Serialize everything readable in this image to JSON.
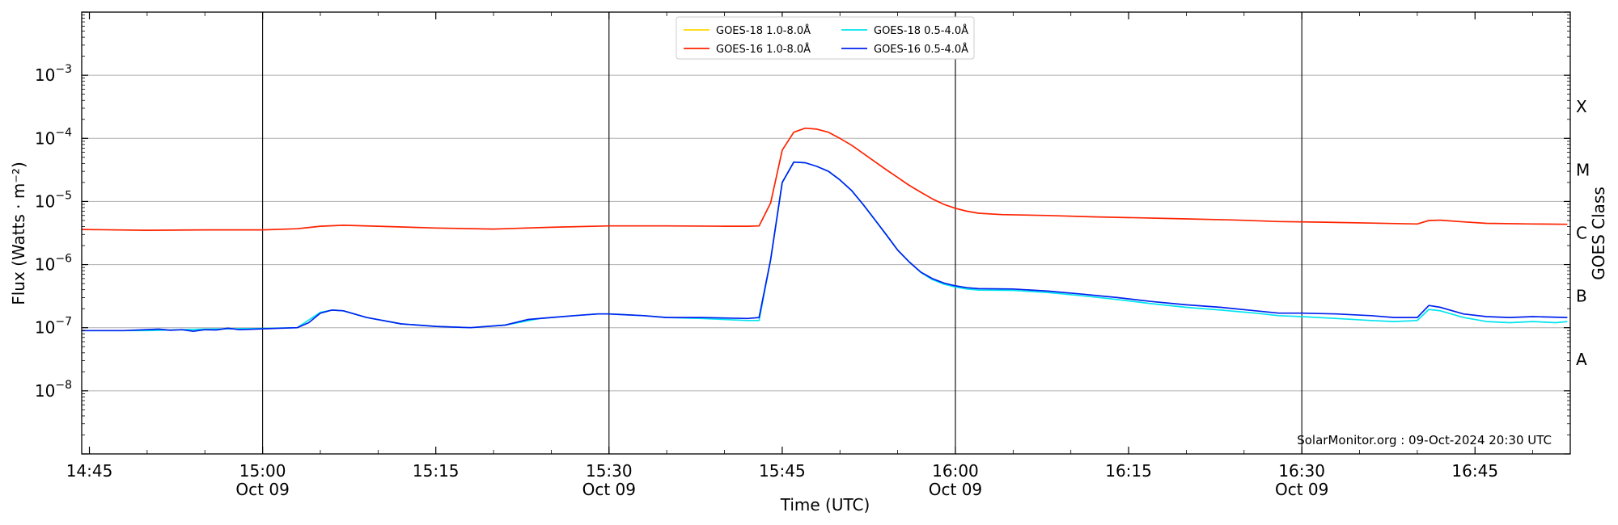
{
  "chart_data": {
    "type": "line",
    "title": "",
    "xlabel": "Time (UTC)",
    "ylabel": "Flux (Watts · m⁻²)",
    "ylabel_right": "GOES Class",
    "yscale": "log",
    "ylim": [
      1e-09,
      0.01
    ],
    "xlim": [
      "14:44:20",
      "16:53:15"
    ],
    "y_ticks": [
      {
        "value": 1e-08,
        "base": "10",
        "exp": "−8"
      },
      {
        "value": 1e-07,
        "base": "10",
        "exp": "−7"
      },
      {
        "value": 1e-06,
        "base": "10",
        "exp": "−6"
      },
      {
        "value": 1e-05,
        "base": "10",
        "exp": "−5"
      },
      {
        "value": 0.0001,
        "base": "10",
        "exp": "−4"
      },
      {
        "value": 0.001,
        "base": "10",
        "exp": "−3"
      }
    ],
    "x_ticks": [
      {
        "time": "14:45",
        "label": "14:45",
        "date": ""
      },
      {
        "time": "15:00",
        "label": "15:00",
        "date": "Oct 09"
      },
      {
        "time": "15:15",
        "label": "15:15",
        "date": ""
      },
      {
        "time": "15:30",
        "label": "15:30",
        "date": "Oct 09"
      },
      {
        "time": "15:45",
        "label": "15:45",
        "date": ""
      },
      {
        "time": "16:00",
        "label": "16:00",
        "date": "Oct 09"
      },
      {
        "time": "16:15",
        "label": "16:15",
        "date": ""
      },
      {
        "time": "16:30",
        "label": "16:30",
        "date": "Oct 09"
      },
      {
        "time": "16:45",
        "label": "16:45",
        "date": ""
      }
    ],
    "vertical_lines": [
      "15:00",
      "15:30",
      "16:00",
      "16:30"
    ],
    "goes_classes": [
      {
        "label": "A",
        "value": 3.16e-08
      },
      {
        "label": "B",
        "value": 3.16e-07
      },
      {
        "label": "C",
        "value": 3.16e-06
      },
      {
        "label": "M",
        "value": 3.16e-05
      },
      {
        "label": "X",
        "value": 0.000316
      }
    ],
    "grid": "horizontal at y decades",
    "legend_position": "top-center",
    "annotation": "SolarMonitor.org : 09-Oct-2024 20:30 UTC",
    "series": [
      {
        "name": "GOES-18 1.0-8.0Å",
        "color": "#ffd700",
        "points": []
      },
      {
        "name": "GOES-18 0.5-4.0Å",
        "color": "#00e5ee",
        "points": [
          [
            "14:44:20",
            9e-08
          ],
          [
            "14:50",
            9e-08
          ],
          [
            "14:55",
            9.5e-08
          ],
          [
            "15:00",
            9.7e-08
          ],
          [
            "15:03",
            1e-07
          ],
          [
            "15:05",
            1.75e-07
          ],
          [
            "15:06",
            1.9e-07
          ],
          [
            "15:07",
            1.85e-07
          ],
          [
            "15:09",
            1.45e-07
          ],
          [
            "15:12",
            1.15e-07
          ],
          [
            "15:15",
            1.05e-07
          ],
          [
            "15:18",
            1e-07
          ],
          [
            "15:21",
            1.1e-07
          ],
          [
            "15:24",
            1.4e-07
          ],
          [
            "15:27",
            1.55e-07
          ],
          [
            "15:29",
            1.65e-07
          ],
          [
            "15:30",
            1.65e-07
          ],
          [
            "15:33",
            1.55e-07
          ],
          [
            "15:35",
            1.45e-07
          ],
          [
            "15:38",
            1.4e-07
          ],
          [
            "15:42",
            1.3e-07
          ],
          [
            "15:43",
            1.3e-07
          ],
          [
            "15:44",
            1.2e-06
          ],
          [
            "15:45",
            2e-05
          ],
          [
            "15:46",
            4.2e-05
          ],
          [
            "15:47",
            4.1e-05
          ],
          [
            "15:48",
            3.6e-05
          ],
          [
            "15:49",
            3e-05
          ],
          [
            "15:50",
            2.2e-05
          ],
          [
            "15:51",
            1.5e-05
          ],
          [
            "15:52",
            9e-06
          ],
          [
            "15:53",
            5.2e-06
          ],
          [
            "15:54",
            3e-06
          ],
          [
            "15:55",
            1.7e-06
          ],
          [
            "15:56",
            1.1e-06
          ],
          [
            "15:57",
            7.5e-07
          ],
          [
            "15:58",
            5.8e-07
          ],
          [
            "15:59",
            4.9e-07
          ],
          [
            "16:00",
            4.4e-07
          ],
          [
            "16:01",
            4.1e-07
          ],
          [
            "16:02",
            3.95e-07
          ],
          [
            "16:05",
            3.9e-07
          ],
          [
            "16:08",
            3.6e-07
          ],
          [
            "16:11",
            3.2e-07
          ],
          [
            "16:14",
            2.8e-07
          ],
          [
            "16:17",
            2.4e-07
          ],
          [
            "16:20",
            2.1e-07
          ],
          [
            "16:23",
            1.9e-07
          ],
          [
            "16:26",
            1.7e-07
          ],
          [
            "16:28",
            1.55e-07
          ],
          [
            "16:30",
            1.5e-07
          ],
          [
            "16:33",
            1.4e-07
          ],
          [
            "16:36",
            1.3e-07
          ],
          [
            "16:38",
            1.25e-07
          ],
          [
            "16:40",
            1.3e-07
          ],
          [
            "16:41",
            1.95e-07
          ],
          [
            "16:42",
            1.85e-07
          ],
          [
            "16:44",
            1.45e-07
          ],
          [
            "16:46",
            1.25e-07
          ],
          [
            "16:48",
            1.2e-07
          ],
          [
            "16:50",
            1.25e-07
          ],
          [
            "16:52",
            1.2e-07
          ],
          [
            "16:53",
            1.25e-07
          ]
        ]
      },
      {
        "name": "GOES-16 1.0-8.0Å",
        "color": "#ff2200",
        "points": [
          [
            "14:44:20",
            3.6e-06
          ],
          [
            "14:50",
            3.5e-06
          ],
          [
            "14:55",
            3.55e-06
          ],
          [
            "15:00",
            3.55e-06
          ],
          [
            "15:03",
            3.7e-06
          ],
          [
            "15:05",
            4.05e-06
          ],
          [
            "15:07",
            4.2e-06
          ],
          [
            "15:10",
            4.05e-06
          ],
          [
            "15:15",
            3.8e-06
          ],
          [
            "15:20",
            3.65e-06
          ],
          [
            "15:25",
            3.9e-06
          ],
          [
            "15:30",
            4.1e-06
          ],
          [
            "15:35",
            4.1e-06
          ],
          [
            "15:40",
            4.05e-06
          ],
          [
            "15:42",
            4.05e-06
          ],
          [
            "15:43",
            4.1e-06
          ],
          [
            "15:44",
            9.5e-06
          ],
          [
            "15:45",
            6.5e-05
          ],
          [
            "15:46",
            0.000125
          ],
          [
            "15:47",
            0.000145
          ],
          [
            "15:48",
            0.00014
          ],
          [
            "15:49",
            0.000125
          ],
          [
            "15:50",
            0.0001
          ],
          [
            "15:51",
            7.8e-05
          ],
          [
            "15:52",
            5.8e-05
          ],
          [
            "15:53",
            4.3e-05
          ],
          [
            "15:54",
            3.2e-05
          ],
          [
            "15:55",
            2.4e-05
          ],
          [
            "15:56",
            1.8e-05
          ],
          [
            "15:57",
            1.4e-05
          ],
          [
            "15:58",
            1.1e-05
          ],
          [
            "15:59",
            9e-06
          ],
          [
            "16:00",
            7.8e-06
          ],
          [
            "16:01",
            7e-06
          ],
          [
            "16:02",
            6.5e-06
          ],
          [
            "16:04",
            6.2e-06
          ],
          [
            "16:08",
            6e-06
          ],
          [
            "16:12",
            5.7e-06
          ],
          [
            "16:16",
            5.5e-06
          ],
          [
            "16:20",
            5.3e-06
          ],
          [
            "16:24",
            5.1e-06
          ],
          [
            "16:28",
            4.8e-06
          ],
          [
            "16:32",
            4.7e-06
          ],
          [
            "16:36",
            4.55e-06
          ],
          [
            "16:40",
            4.4e-06
          ],
          [
            "16:41",
            5e-06
          ],
          [
            "16:42",
            5.05e-06
          ],
          [
            "16:44",
            4.75e-06
          ],
          [
            "16:46",
            4.5e-06
          ],
          [
            "16:50",
            4.4e-06
          ],
          [
            "16:53",
            4.35e-06
          ]
        ]
      },
      {
        "name": "GOES-16 0.5-4.0Å",
        "color": "#0022ee",
        "points": [
          [
            "14:44:20",
            9e-08
          ],
          [
            "14:48",
            9e-08
          ],
          [
            "14:51",
            9.5e-08
          ],
          [
            "14:52",
            9.1e-08
          ],
          [
            "14:53",
            9.3e-08
          ],
          [
            "14:54",
            8.8e-08
          ],
          [
            "14:55",
            9.3e-08
          ],
          [
            "14:56",
            9.2e-08
          ],
          [
            "14:57",
            9.8e-08
          ],
          [
            "14:58",
            9.3e-08
          ],
          [
            "15:00",
            9.6e-08
          ],
          [
            "15:03",
            1e-07
          ],
          [
            "15:04",
            1.2e-07
          ],
          [
            "15:05",
            1.7e-07
          ],
          [
            "15:06",
            1.9e-07
          ],
          [
            "15:07",
            1.85e-07
          ],
          [
            "15:09",
            1.45e-07
          ],
          [
            "15:12",
            1.15e-07
          ],
          [
            "15:15",
            1.05e-07
          ],
          [
            "15:18",
            1e-07
          ],
          [
            "15:21",
            1.1e-07
          ],
          [
            "15:23",
            1.35e-07
          ],
          [
            "15:25",
            1.45e-07
          ],
          [
            "15:27",
            1.55e-07
          ],
          [
            "15:29",
            1.65e-07
          ],
          [
            "15:30",
            1.65e-07
          ],
          [
            "15:33",
            1.55e-07
          ],
          [
            "15:35",
            1.45e-07
          ],
          [
            "15:38",
            1.45e-07
          ],
          [
            "15:42",
            1.4e-07
          ],
          [
            "15:43",
            1.45e-07
          ],
          [
            "15:44",
            1.2e-06
          ],
          [
            "15:45",
            2e-05
          ],
          [
            "15:46",
            4.2e-05
          ],
          [
            "15:47",
            4.1e-05
          ],
          [
            "15:48",
            3.6e-05
          ],
          [
            "15:49",
            3e-05
          ],
          [
            "15:50",
            2.2e-05
          ],
          [
            "15:51",
            1.5e-05
          ],
          [
            "15:52",
            9e-06
          ],
          [
            "15:53",
            5.2e-06
          ],
          [
            "15:54",
            3e-06
          ],
          [
            "15:55",
            1.7e-06
          ],
          [
            "15:56",
            1.1e-06
          ],
          [
            "15:57",
            7.6e-07
          ],
          [
            "15:58",
            6e-07
          ],
          [
            "15:59",
            5.1e-07
          ],
          [
            "16:00",
            4.6e-07
          ],
          [
            "16:01",
            4.3e-07
          ],
          [
            "16:02",
            4.15e-07
          ],
          [
            "16:05",
            4.1e-07
          ],
          [
            "16:08",
            3.8e-07
          ],
          [
            "16:11",
            3.4e-07
          ],
          [
            "16:14",
            3e-07
          ],
          [
            "16:17",
            2.6e-07
          ],
          [
            "16:20",
            2.3e-07
          ],
          [
            "16:23",
            2.1e-07
          ],
          [
            "16:26",
            1.85e-07
          ],
          [
            "16:28",
            1.7e-07
          ],
          [
            "16:30",
            1.7e-07
          ],
          [
            "16:33",
            1.65e-07
          ],
          [
            "16:36",
            1.55e-07
          ],
          [
            "16:38",
            1.45e-07
          ],
          [
            "16:40",
            1.45e-07
          ],
          [
            "16:41",
            2.25e-07
          ],
          [
            "16:42",
            2.1e-07
          ],
          [
            "16:44",
            1.65e-07
          ],
          [
            "16:46",
            1.5e-07
          ],
          [
            "16:48",
            1.45e-07
          ],
          [
            "16:50",
            1.5e-07
          ],
          [
            "16:53",
            1.45e-07
          ]
        ]
      }
    ],
    "legend_order": [
      "GOES-18 1.0-8.0Å",
      "GOES-18 0.5-4.0Å",
      "GOES-16 1.0-8.0Å",
      "GOES-16 0.5-4.0Å"
    ]
  }
}
